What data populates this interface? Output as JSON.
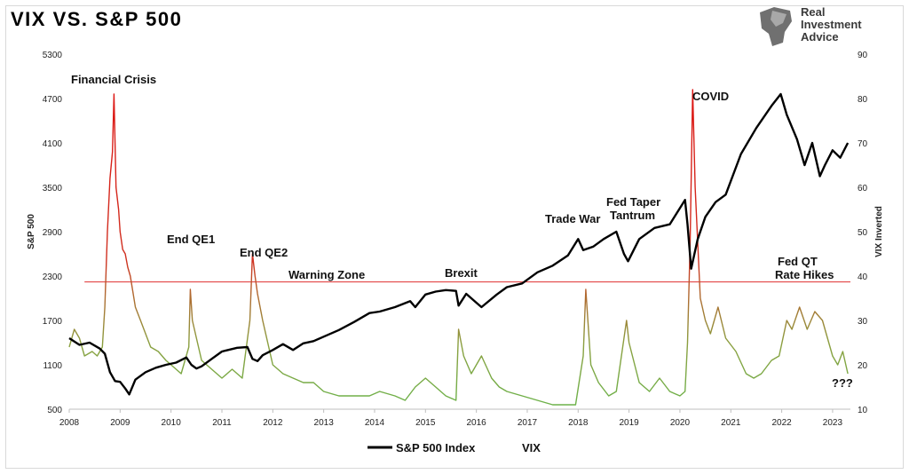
{
  "page": {
    "title": "VIX VS. S&P 500",
    "logo_text": [
      "Real",
      "Investment",
      "Advice"
    ]
  },
  "chart_data": {
    "type": "line",
    "title": "VIX VS. S&P 500",
    "ylabel_left": "S&P 500",
    "ylabel_right": "VIX Inverted",
    "xlim": [
      2008,
      2023.35
    ],
    "ylim_left": [
      500,
      5300
    ],
    "ylim_right": [
      10,
      90
    ],
    "left_ticks": [
      500,
      1100,
      1700,
      2300,
      2900,
      3500,
      4100,
      4700,
      5300
    ],
    "right_ticks": [
      10,
      20,
      30,
      40,
      50,
      60,
      70,
      80,
      90
    ],
    "x_ticks": [
      "2008",
      "2009",
      "2010",
      "2011",
      "2012",
      "2013",
      "2014",
      "2015",
      "2016",
      "2017",
      "2018",
      "2019",
      "2020",
      "2021",
      "2022",
      "2023"
    ],
    "grid": false,
    "warning_zone_level": 2220,
    "legend": {
      "placement": "bottom",
      "entries": [
        "S&P 500 Index",
        "VIX"
      ]
    },
    "series": [
      {
        "name": "S&P 500 Index",
        "axis": "left",
        "color": "#000000",
        "x": [
          2008.0,
          2008.2,
          2008.4,
          2008.6,
          2008.7,
          2008.8,
          2008.9,
          2009.0,
          2009.1,
          2009.18,
          2009.3,
          2009.5,
          2009.7,
          2009.9,
          2010.1,
          2010.3,
          2010.4,
          2010.5,
          2010.6,
          2010.8,
          2011.0,
          2011.3,
          2011.5,
          2011.6,
          2011.7,
          2011.8,
          2012.0,
          2012.2,
          2012.4,
          2012.6,
          2012.8,
          2013.0,
          2013.3,
          2013.6,
          2013.9,
          2014.1,
          2014.4,
          2014.7,
          2014.8,
          2015.0,
          2015.2,
          2015.4,
          2015.6,
          2015.65,
          2015.8,
          2016.0,
          2016.1,
          2016.4,
          2016.6,
          2016.9,
          2017.2,
          2017.5,
          2017.8,
          2018.0,
          2018.1,
          2018.3,
          2018.5,
          2018.75,
          2018.9,
          2018.98,
          2019.2,
          2019.5,
          2019.8,
          2020.1,
          2020.15,
          2020.22,
          2020.35,
          2020.5,
          2020.7,
          2020.9,
          2021.2,
          2021.5,
          2021.8,
          2021.98,
          2022.1,
          2022.3,
          2022.45,
          2022.6,
          2022.75,
          2022.85,
          2023.0,
          2023.15,
          2023.3
        ],
        "values": [
          1460,
          1370,
          1400,
          1320,
          1250,
          1000,
          880,
          870,
          780,
          700,
          900,
          1000,
          1060,
          1100,
          1130,
          1200,
          1100,
          1050,
          1080,
          1180,
          1280,
          1330,
          1340,
          1180,
          1150,
          1230,
          1300,
          1380,
          1300,
          1390,
          1420,
          1480,
          1570,
          1680,
          1800,
          1820,
          1880,
          1960,
          1880,
          2050,
          2090,
          2110,
          2100,
          1900,
          2060,
          1940,
          1880,
          2050,
          2150,
          2200,
          2350,
          2440,
          2580,
          2800,
          2650,
          2700,
          2800,
          2900,
          2600,
          2500,
          2800,
          2950,
          3000,
          3330,
          3000,
          2400,
          2800,
          3100,
          3300,
          3400,
          3950,
          4300,
          4600,
          4760,
          4480,
          4150,
          3800,
          4100,
          3650,
          3800,
          4000,
          3900,
          4100
        ]
      },
      {
        "name": "VIX",
        "axis": "right",
        "color": "#cc2222",
        "x": [
          2008.0,
          2008.1,
          2008.2,
          2008.3,
          2008.45,
          2008.55,
          2008.65,
          2008.7,
          2008.75,
          2008.8,
          2008.85,
          2008.88,
          2008.92,
          2008.97,
          2009.0,
          2009.05,
          2009.1,
          2009.15,
          2009.2,
          2009.3,
          2009.4,
          2009.5,
          2009.6,
          2009.75,
          2009.9,
          2010.0,
          2010.2,
          2010.35,
          2010.38,
          2010.42,
          2010.5,
          2010.6,
          2010.8,
          2011.0,
          2011.2,
          2011.4,
          2011.55,
          2011.6,
          2011.65,
          2011.7,
          2011.75,
          2011.8,
          2011.9,
          2012.0,
          2012.2,
          2012.4,
          2012.6,
          2012.8,
          2013.0,
          2013.3,
          2013.6,
          2013.9,
          2014.1,
          2014.4,
          2014.6,
          2014.8,
          2015.0,
          2015.2,
          2015.4,
          2015.6,
          2015.65,
          2015.75,
          2015.9,
          2016.1,
          2016.3,
          2016.45,
          2016.6,
          2016.9,
          2017.2,
          2017.5,
          2017.8,
          2017.95,
          2018.1,
          2018.15,
          2018.25,
          2018.4,
          2018.6,
          2018.75,
          2018.95,
          2019.0,
          2019.2,
          2019.4,
          2019.6,
          2019.8,
          2020.0,
          2020.1,
          2020.15,
          2020.2,
          2020.25,
          2020.3,
          2020.4,
          2020.5,
          2020.6,
          2020.75,
          2020.9,
          2021.1,
          2021.3,
          2021.45,
          2021.6,
          2021.8,
          2021.95,
          2022.1,
          2022.2,
          2022.35,
          2022.5,
          2022.65,
          2022.8,
          2022.9,
          2023.0,
          2023.1,
          2023.2,
          2023.3
        ],
        "values": [
          24,
          28,
          26,
          22,
          23,
          22,
          24,
          33,
          50,
          62,
          68,
          81,
          60,
          55,
          50,
          46,
          45,
          42,
          40,
          33,
          30,
          27,
          24,
          23,
          21,
          20,
          18,
          24,
          37,
          30,
          26,
          21,
          19,
          17,
          19,
          17,
          30,
          45,
          40,
          36,
          33,
          30,
          25,
          20,
          18,
          17,
          16,
          16,
          14,
          13,
          13,
          13,
          14,
          13,
          12,
          15,
          17,
          15,
          13,
          12,
          28,
          22,
          18,
          22,
          17,
          15,
          14,
          13,
          12,
          11,
          11,
          11,
          22,
          37,
          20,
          16,
          13,
          14,
          30,
          25,
          16,
          14,
          17,
          14,
          13,
          14,
          25,
          47,
          82,
          60,
          35,
          30,
          27,
          33,
          26,
          23,
          18,
          17,
          18,
          21,
          22,
          30,
          28,
          33,
          28,
          32,
          30,
          26,
          22,
          20,
          23,
          18
        ]
      }
    ],
    "annotations": [
      "Financial Crisis",
      "End QE1",
      "End QE2",
      "Warning Zone",
      "Brexit",
      "Trade War",
      "Fed Taper",
      "Tantrum",
      "COVID",
      "Fed QT",
      "Rate Hikes",
      "???"
    ]
  }
}
